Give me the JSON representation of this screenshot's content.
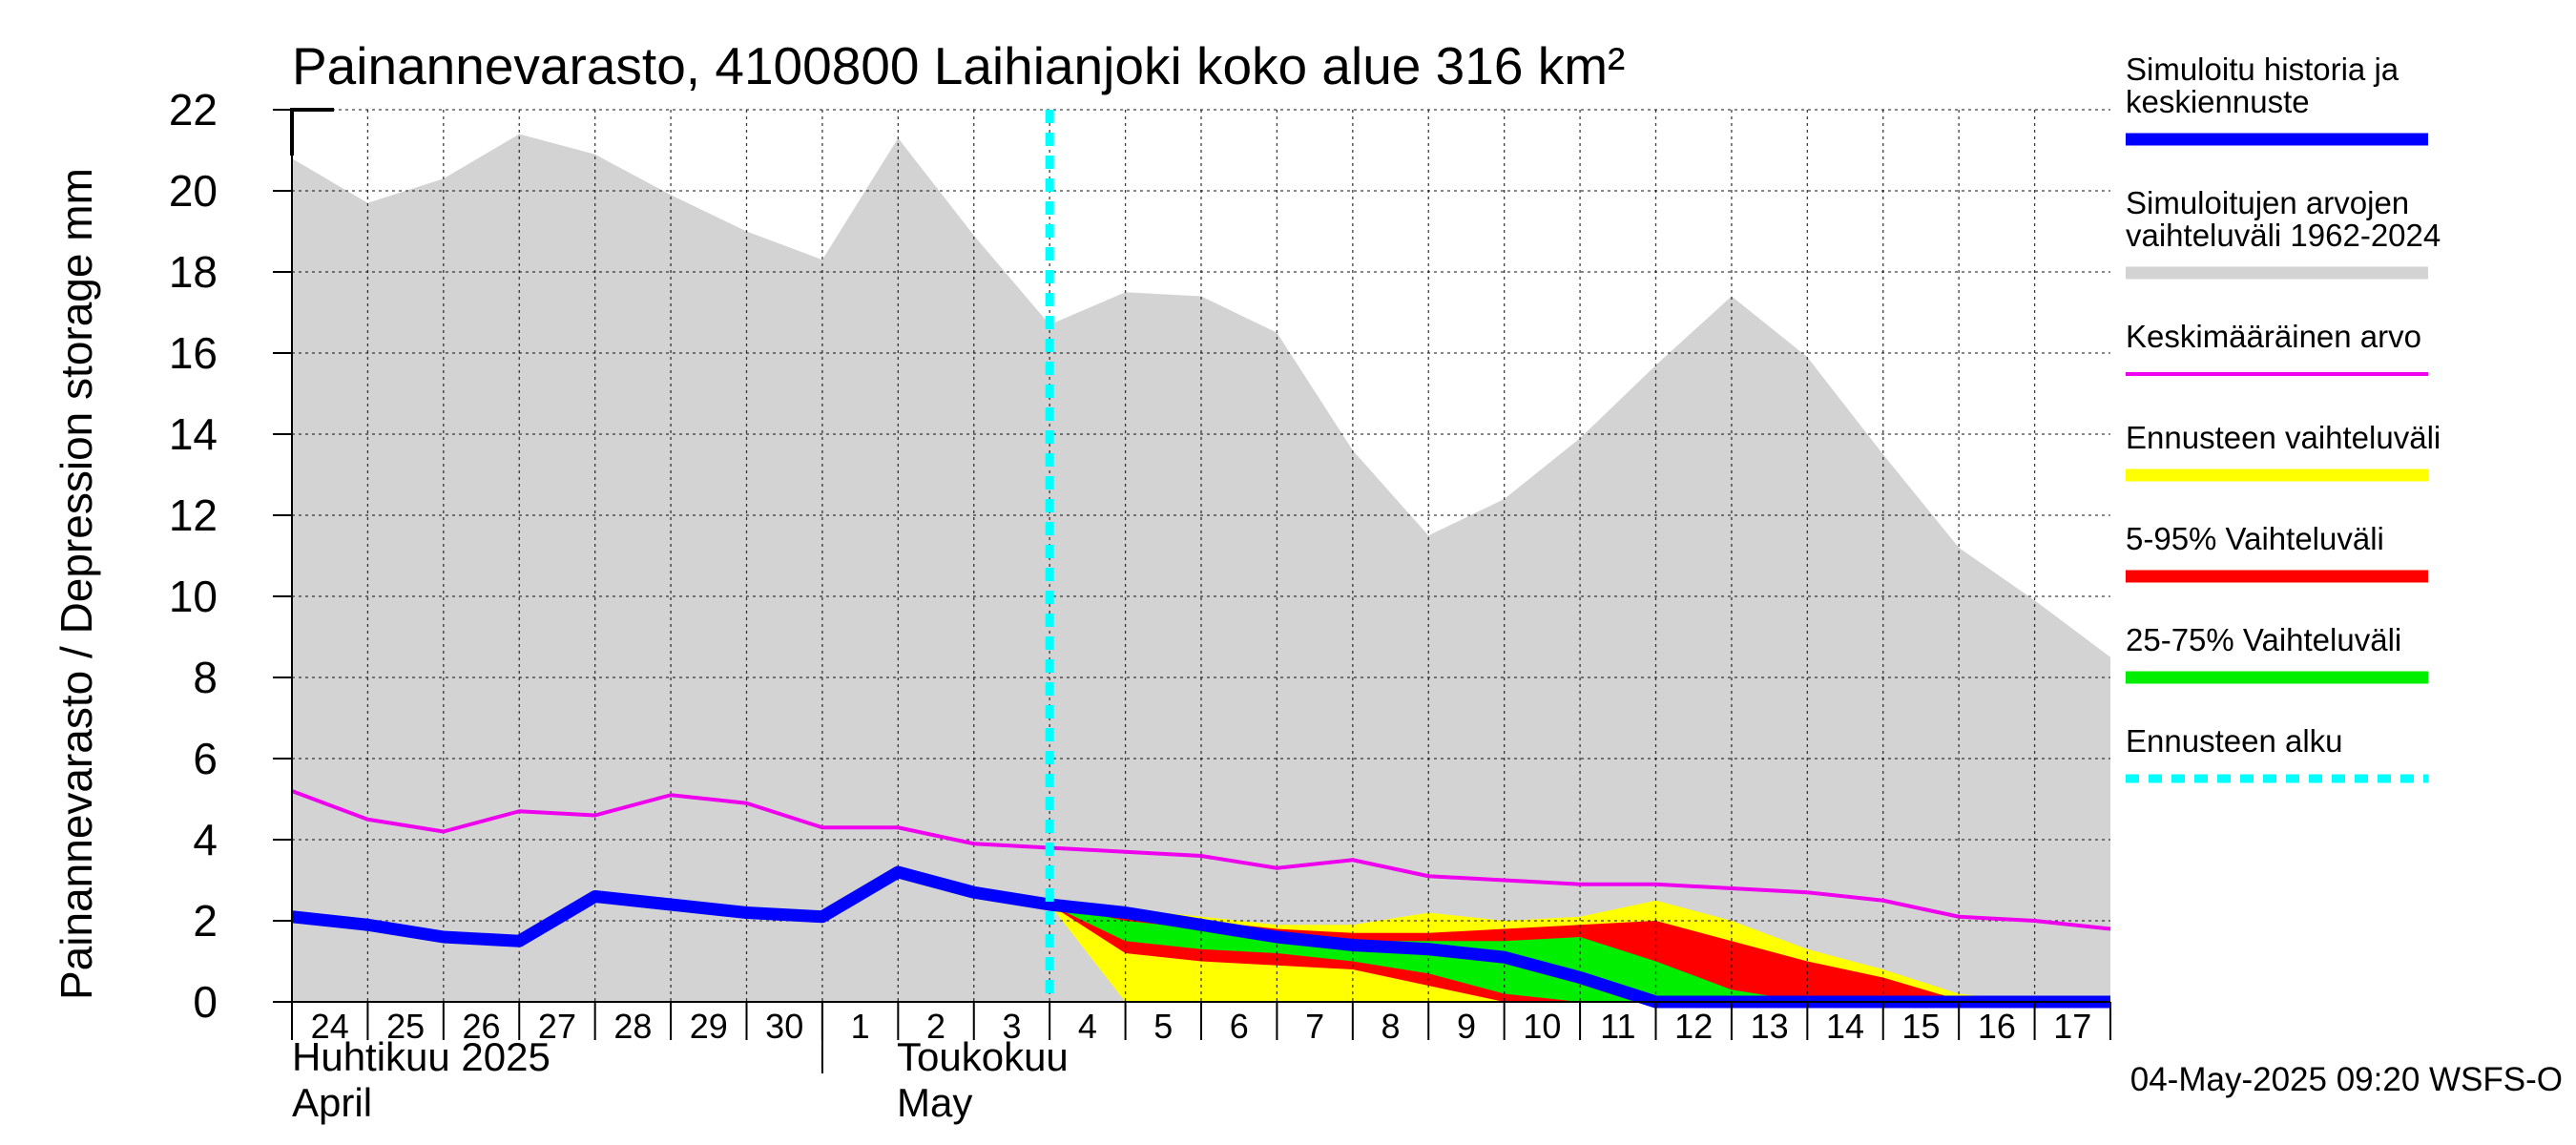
{
  "chart_data": {
    "type": "area",
    "title": "Painannevarasto, 4100800 Laihianjoki koko alue 316 km²",
    "ylabel": "Painannevarasto / Depression storage    mm",
    "ylim": [
      0,
      22
    ],
    "yticks": [
      "0",
      "2",
      "4",
      "6",
      "8",
      "10",
      "12",
      "14",
      "16",
      "18",
      "20",
      "22"
    ],
    "x_day_labels": [
      "24",
      "25",
      "26",
      "27",
      "28",
      "29",
      "30",
      "1",
      "2",
      "3",
      "4",
      "5",
      "6",
      "7",
      "8",
      "9",
      "10",
      "11",
      "12",
      "13",
      "14",
      "15",
      "16",
      "17"
    ],
    "month_labels": [
      {
        "line1": "Huhtikuu  2025",
        "line2": "April"
      },
      {
        "line1": "Toukokuu",
        "line2": "May"
      }
    ],
    "x_range": [
      0,
      24
    ],
    "forecast_start_x": 10,
    "series": [
      {
        "name": "Simuloitujen arvojen vaihteluväli 1962-2024",
        "kind": "band",
        "color": "#d3d3d3",
        "x": [
          0,
          1,
          2,
          3,
          4,
          5,
          6,
          7,
          8,
          9,
          10,
          11,
          12,
          13,
          14,
          15,
          16,
          17,
          18,
          19,
          20,
          21,
          22,
          23,
          24
        ],
        "upper": [
          20.8,
          19.7,
          20.3,
          21.4,
          20.9,
          19.9,
          19.0,
          18.3,
          21.3,
          18.9,
          16.7,
          17.5,
          17.4,
          16.5,
          13.6,
          11.5,
          12.4,
          13.9,
          15.7,
          17.4,
          15.9,
          13.5,
          11.2,
          9.9,
          8.5
        ],
        "lower": [
          0,
          0,
          0,
          0,
          0,
          0,
          0,
          0,
          0,
          0,
          0,
          0,
          0,
          0,
          0,
          0,
          0,
          0,
          0,
          0,
          0,
          0,
          0,
          0,
          0
        ]
      },
      {
        "name": "Ennusteen vaihteluväli",
        "kind": "band",
        "color": "#ffff00",
        "x": [
          10,
          11,
          12,
          13,
          14,
          15,
          16,
          17,
          18,
          19,
          20,
          21,
          22,
          23,
          24
        ],
        "upper": [
          2.4,
          2.3,
          2.1,
          1.9,
          1.9,
          2.2,
          2.0,
          2.1,
          2.5,
          2.0,
          1.3,
          0.8,
          0.2,
          0,
          0
        ],
        "lower": [
          2.4,
          0,
          0,
          0,
          0,
          0,
          0,
          0,
          0,
          0,
          0,
          0,
          0,
          0,
          0
        ]
      },
      {
        "name": "5-95% Vaihteluväli",
        "kind": "band",
        "color": "#ff0000",
        "x": [
          10,
          11,
          12,
          13,
          14,
          15,
          16,
          17,
          18,
          19,
          20,
          21,
          22,
          23,
          24
        ],
        "upper": [
          2.4,
          2.2,
          2.0,
          1.8,
          1.7,
          1.7,
          1.8,
          1.9,
          2.0,
          1.5,
          1.0,
          0.6,
          0.05,
          0,
          0
        ],
        "lower": [
          2.4,
          1.2,
          1.0,
          0.9,
          0.8,
          0.4,
          0,
          0,
          0,
          0,
          0,
          0,
          0,
          0,
          0
        ]
      },
      {
        "name": "25-75% Vaihteluväli",
        "kind": "band",
        "color": "#00ee00",
        "x": [
          10,
          11,
          12,
          13,
          14,
          15,
          16,
          17,
          18,
          19,
          20,
          21,
          22,
          23,
          24
        ],
        "upper": [
          2.4,
          2.0,
          1.8,
          1.6,
          1.5,
          1.5,
          1.5,
          1.6,
          1.0,
          0.3,
          0,
          0,
          0,
          0,
          0
        ],
        "lower": [
          2.4,
          1.5,
          1.3,
          1.2,
          1.0,
          0.7,
          0.2,
          0,
          0,
          0,
          0,
          0,
          0,
          0,
          0
        ]
      },
      {
        "name": "Keskimääräinen arvo",
        "kind": "line",
        "color": "#ee00ee",
        "x": [
          0,
          1,
          2,
          3,
          4,
          5,
          6,
          7,
          8,
          9,
          10,
          11,
          12,
          13,
          14,
          15,
          16,
          17,
          18,
          19,
          20,
          21,
          22,
          23,
          24
        ],
        "values": [
          5.2,
          4.5,
          4.2,
          4.7,
          4.6,
          5.1,
          4.9,
          4.3,
          4.3,
          3.9,
          3.8,
          3.7,
          3.6,
          3.3,
          3.5,
          3.1,
          3.0,
          2.9,
          2.9,
          2.8,
          2.7,
          2.5,
          2.1,
          2.0,
          1.8
        ]
      },
      {
        "name": "Simuloitu historia ja keskiennuste",
        "kind": "line",
        "color": "#0000ff",
        "x": [
          0,
          1,
          2,
          3,
          4,
          5,
          6,
          7,
          8,
          9,
          10,
          11,
          12,
          13,
          14,
          15,
          16,
          17,
          18,
          19,
          20,
          21,
          22,
          23,
          24
        ],
        "values": [
          2.1,
          1.9,
          1.6,
          1.5,
          2.6,
          2.4,
          2.2,
          2.1,
          3.2,
          2.7,
          2.4,
          2.2,
          1.9,
          1.6,
          1.4,
          1.3,
          1.1,
          0.6,
          0,
          0,
          0,
          0,
          0,
          0,
          0
        ]
      }
    ],
    "legend": [
      {
        "label": "Simuloitu historia ja keskiennuste",
        "color": "#0000ff",
        "style": "thick"
      },
      {
        "label": "Simuloitujen arvojen vaihteluväli 1962-2024",
        "color": "#d3d3d3",
        "style": "thick"
      },
      {
        "label": "Keskimääräinen arvo",
        "color": "#ee00ee",
        "style": "thin"
      },
      {
        "label": "Ennusteen vaihteluväli",
        "color": "#ffff00",
        "style": "thick"
      },
      {
        "label": "5-95% Vaihteluväli",
        "color": "#ff0000",
        "style": "thick"
      },
      {
        "label": "25-75% Vaihteluväli",
        "color": "#00ee00",
        "style": "thick"
      },
      {
        "label": "Ennusteen alku",
        "color": "#00ffff",
        "style": "dashed"
      }
    ],
    "footer": "04-May-2025 09:20 WSFS-O"
  }
}
